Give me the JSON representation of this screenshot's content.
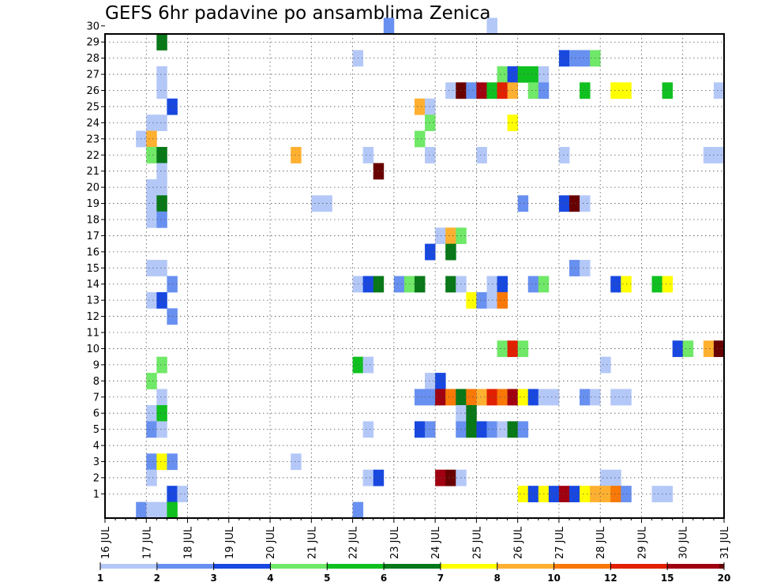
{
  "chart_data": {
    "type": "heatmap",
    "title": "GEFS 6hr padavine po ansamblima Zenica",
    "xlabel": "",
    "ylabel": "",
    "x_ticks": [
      "16 JUL",
      "17 JUL",
      "18 JUL",
      "19 JUL",
      "20 JUL",
      "21 JUL",
      "22 JUL",
      "23 JUL",
      "24 JUL",
      "25 JUL",
      "26 JUL",
      "27 JUL",
      "28 JUL",
      "29 JUL",
      "30 JUL",
      "31 JUL"
    ],
    "y_ticks": [
      "1",
      "2",
      "3",
      "4",
      "5",
      "6",
      "7",
      "8",
      "9",
      "10",
      "11",
      "12",
      "13",
      "14",
      "15",
      "16",
      "17",
      "18",
      "19",
      "20",
      "21",
      "22",
      "23",
      "24",
      "25",
      "26",
      "27",
      "28",
      "29",
      "30"
    ],
    "xlim": [
      "16 JUL 00Z",
      "31 JUL 00Z"
    ],
    "x_step": "6hr",
    "ylim": [
      0,
      30
    ],
    "grid": true,
    "colorbar": {
      "labels": [
        "1",
        "2",
        "3",
        "4",
        "5",
        "6",
        "7",
        "8",
        "10",
        "12",
        "15",
        "20"
      ],
      "colors": [
        "#b4c8f8",
        "#6890f0",
        "#1848e0",
        "#70e868",
        "#10c020",
        "#087818",
        "#ffff00",
        "#ffb030",
        "#f87808",
        "#e02000",
        "#a00010",
        "#680000"
      ]
    },
    "cells": [
      {
        "member": 30,
        "time": "22 JUL 18Z",
        "level": 2
      },
      {
        "member": 30,
        "time": "25 JUL 06Z",
        "level": 1
      },
      {
        "member": 29,
        "time": "17 JUL 06Z",
        "level": 6
      },
      {
        "member": 28,
        "time": "22 JUL 00Z",
        "level": 1
      },
      {
        "member": 28,
        "time": "27 JUL 00Z",
        "level": 3
      },
      {
        "member": 28,
        "time": "27 JUL 06Z",
        "level": 2
      },
      {
        "member": 28,
        "time": "27 JUL 12Z",
        "level": 2
      },
      {
        "member": 28,
        "time": "27 JUL 18Z",
        "level": 4
      },
      {
        "member": 27,
        "time": "17 JUL 06Z",
        "level": 1
      },
      {
        "member": 27,
        "time": "25 JUL 12Z",
        "level": 4
      },
      {
        "member": 27,
        "time": "25 JUL 18Z",
        "level": 3
      },
      {
        "member": 27,
        "time": "26 JUL 00Z",
        "level": 5
      },
      {
        "member": 27,
        "time": "26 JUL 06Z",
        "level": 5
      },
      {
        "member": 27,
        "time": "26 JUL 12Z",
        "level": 1
      },
      {
        "member": 26,
        "time": "17 JUL 06Z",
        "level": 1
      },
      {
        "member": 26,
        "time": "24 JUL 06Z",
        "level": 1
      },
      {
        "member": 26,
        "time": "24 JUL 12Z",
        "level": 12
      },
      {
        "member": 26,
        "time": "24 JUL 18Z",
        "level": 2
      },
      {
        "member": 26,
        "time": "25 JUL 00Z",
        "level": 11
      },
      {
        "member": 26,
        "time": "25 JUL 06Z",
        "level": 5
      },
      {
        "member": 26,
        "time": "25 JUL 12Z",
        "level": 10
      },
      {
        "member": 26,
        "time": "25 JUL 18Z",
        "level": 8
      },
      {
        "member": 26,
        "time": "26 JUL 06Z",
        "level": 4
      },
      {
        "member": 26,
        "time": "26 JUL 12Z",
        "level": 2
      },
      {
        "member": 26,
        "time": "27 JUL 12Z",
        "level": 5
      },
      {
        "member": 26,
        "time": "28 JUL 06Z",
        "level": 7
      },
      {
        "member": 26,
        "time": "28 JUL 12Z",
        "level": 7
      },
      {
        "member": 26,
        "time": "29 JUL 12Z",
        "level": 5
      },
      {
        "member": 26,
        "time": "30 JUL 18Z",
        "level": 1
      },
      {
        "member": 25,
        "time": "17 JUL 12Z",
        "level": 3
      },
      {
        "member": 25,
        "time": "23 JUL 12Z",
        "level": 8
      },
      {
        "member": 25,
        "time": "23 JUL 18Z",
        "level": 1
      },
      {
        "member": 24,
        "time": "17 JUL 00Z",
        "level": 1
      },
      {
        "member": 24,
        "time": "17 JUL 06Z",
        "level": 1
      },
      {
        "member": 24,
        "time": "23 JUL 18Z",
        "level": 4
      },
      {
        "member": 24,
        "time": "25 JUL 18Z",
        "level": 7
      },
      {
        "member": 23,
        "time": "16 JUL 18Z",
        "level": 1
      },
      {
        "member": 23,
        "time": "17 JUL 00Z",
        "level": 8
      },
      {
        "member": 23,
        "time": "23 JUL 12Z",
        "level": 4
      },
      {
        "member": 22,
        "time": "17 JUL 00Z",
        "level": 4
      },
      {
        "member": 22,
        "time": "17 JUL 06Z",
        "level": 6
      },
      {
        "member": 22,
        "time": "20 JUL 12Z",
        "level": 8
      },
      {
        "member": 22,
        "time": "22 JUL 06Z",
        "level": 1
      },
      {
        "member": 22,
        "time": "23 JUL 18Z",
        "level": 1
      },
      {
        "member": 22,
        "time": "25 JUL 00Z",
        "level": 1
      },
      {
        "member": 22,
        "time": "27 JUL 00Z",
        "level": 1
      },
      {
        "member": 22,
        "time": "30 JUL 12Z",
        "level": 1
      },
      {
        "member": 22,
        "time": "30 JUL 18Z",
        "level": 1
      },
      {
        "member": 21,
        "time": "17 JUL 06Z",
        "level": 1
      },
      {
        "member": 21,
        "time": "22 JUL 12Z",
        "level": 12
      },
      {
        "member": 20,
        "time": "17 JUL 00Z",
        "level": 1
      },
      {
        "member": 20,
        "time": "17 JUL 06Z",
        "level": 1
      },
      {
        "member": 19,
        "time": "17 JUL 00Z",
        "level": 1
      },
      {
        "member": 19,
        "time": "17 JUL 06Z",
        "level": 6
      },
      {
        "member": 19,
        "time": "21 JUL 00Z",
        "level": 1
      },
      {
        "member": 19,
        "time": "21 JUL 06Z",
        "level": 1
      },
      {
        "member": 19,
        "time": "26 JUL 00Z",
        "level": 2
      },
      {
        "member": 19,
        "time": "27 JUL 00Z",
        "level": 3
      },
      {
        "member": 19,
        "time": "27 JUL 06Z",
        "level": 12
      },
      {
        "member": 19,
        "time": "27 JUL 12Z",
        "level": 1
      },
      {
        "member": 18,
        "time": "17 JUL 00Z",
        "level": 1
      },
      {
        "member": 18,
        "time": "17 JUL 06Z",
        "level": 2
      },
      {
        "member": 17,
        "time": "24 JUL 00Z",
        "level": 1
      },
      {
        "member": 17,
        "time": "24 JUL 06Z",
        "level": 8
      },
      {
        "member": 17,
        "time": "24 JUL 12Z",
        "level": 4
      },
      {
        "member": 16,
        "time": "23 JUL 18Z",
        "level": 3
      },
      {
        "member": 16,
        "time": "24 JUL 06Z",
        "level": 6
      },
      {
        "member": 15,
        "time": "17 JUL 00Z",
        "level": 1
      },
      {
        "member": 15,
        "time": "17 JUL 06Z",
        "level": 1
      },
      {
        "member": 15,
        "time": "27 JUL 06Z",
        "level": 2
      },
      {
        "member": 15,
        "time": "27 JUL 12Z",
        "level": 1
      },
      {
        "member": 14,
        "time": "17 JUL 12Z",
        "level": 2
      },
      {
        "member": 14,
        "time": "22 JUL 00Z",
        "level": 1
      },
      {
        "member": 14,
        "time": "22 JUL 06Z",
        "level": 3
      },
      {
        "member": 14,
        "time": "22 JUL 12Z",
        "level": 6
      },
      {
        "member": 14,
        "time": "23 JUL 00Z",
        "level": 2
      },
      {
        "member": 14,
        "time": "23 JUL 06Z",
        "level": 4
      },
      {
        "member": 14,
        "time": "23 JUL 12Z",
        "level": 6
      },
      {
        "member": 14,
        "time": "24 JUL 06Z",
        "level": 6
      },
      {
        "member": 14,
        "time": "24 JUL 12Z",
        "level": 1
      },
      {
        "member": 14,
        "time": "25 JUL 06Z",
        "level": 1
      },
      {
        "member": 14,
        "time": "25 JUL 12Z",
        "level": 3
      },
      {
        "member": 14,
        "time": "26 JUL 06Z",
        "level": 2
      },
      {
        "member": 14,
        "time": "26 JUL 12Z",
        "level": 4
      },
      {
        "member": 14,
        "time": "28 JUL 06Z",
        "level": 3
      },
      {
        "member": 14,
        "time": "28 JUL 12Z",
        "level": 7
      },
      {
        "member": 14,
        "time": "29 JUL 06Z",
        "level": 5
      },
      {
        "member": 14,
        "time": "29 JUL 12Z",
        "level": 7
      },
      {
        "member": 13,
        "time": "17 JUL 00Z",
        "level": 1
      },
      {
        "member": 13,
        "time": "17 JUL 06Z",
        "level": 3
      },
      {
        "member": 13,
        "time": "24 JUL 18Z",
        "level": 7
      },
      {
        "member": 13,
        "time": "25 JUL 00Z",
        "level": 2
      },
      {
        "member": 13,
        "time": "25 JUL 06Z",
        "level": 1
      },
      {
        "member": 13,
        "time": "25 JUL 12Z",
        "level": 9
      },
      {
        "member": 12,
        "time": "17 JUL 12Z",
        "level": 2
      },
      {
        "member": 10,
        "time": "25 JUL 12Z",
        "level": 4
      },
      {
        "member": 10,
        "time": "25 JUL 18Z",
        "level": 10
      },
      {
        "member": 10,
        "time": "26 JUL 00Z",
        "level": 4
      },
      {
        "member": 10,
        "time": "29 JUL 18Z",
        "level": 3
      },
      {
        "member": 10,
        "time": "30 JUL 00Z",
        "level": 4
      },
      {
        "member": 10,
        "time": "30 JUL 12Z",
        "level": 8
      },
      {
        "member": 10,
        "time": "30 JUL 18Z",
        "level": 12
      },
      {
        "member": 9,
        "time": "17 JUL 06Z",
        "level": 4
      },
      {
        "member": 9,
        "time": "22 JUL 00Z",
        "level": 5
      },
      {
        "member": 9,
        "time": "22 JUL 06Z",
        "level": 1
      },
      {
        "member": 9,
        "time": "28 JUL 00Z",
        "level": 1
      },
      {
        "member": 8,
        "time": "17 JUL 00Z",
        "level": 4
      },
      {
        "member": 8,
        "time": "23 JUL 18Z",
        "level": 1
      },
      {
        "member": 8,
        "time": "24 JUL 00Z",
        "level": 3
      },
      {
        "member": 7,
        "time": "17 JUL 06Z",
        "level": 1
      },
      {
        "member": 7,
        "time": "23 JUL 12Z",
        "level": 2
      },
      {
        "member": 7,
        "time": "23 JUL 18Z",
        "level": 2
      },
      {
        "member": 7,
        "time": "24 JUL 00Z",
        "level": 11
      },
      {
        "member": 7,
        "time": "24 JUL 06Z",
        "level": 9
      },
      {
        "member": 7,
        "time": "24 JUL 12Z",
        "level": 6
      },
      {
        "member": 7,
        "time": "24 JUL 18Z",
        "level": 9
      },
      {
        "member": 7,
        "time": "25 JUL 00Z",
        "level": 8
      },
      {
        "member": 7,
        "time": "25 JUL 06Z",
        "level": 10
      },
      {
        "member": 7,
        "time": "25 JUL 12Z",
        "level": 9
      },
      {
        "member": 7,
        "time": "25 JUL 18Z",
        "level": 11
      },
      {
        "member": 7,
        "time": "26 JUL 00Z",
        "level": 7
      },
      {
        "member": 7,
        "time": "26 JUL 06Z",
        "level": 3
      },
      {
        "member": 7,
        "time": "26 JUL 12Z",
        "level": 1
      },
      {
        "member": 7,
        "time": "26 JUL 18Z",
        "level": 1
      },
      {
        "member": 7,
        "time": "27 JUL 12Z",
        "level": 2
      },
      {
        "member": 7,
        "time": "27 JUL 18Z",
        "level": 1
      },
      {
        "member": 7,
        "time": "28 JUL 06Z",
        "level": 1
      },
      {
        "member": 7,
        "time": "28 JUL 12Z",
        "level": 1
      },
      {
        "member": 6,
        "time": "17 JUL 00Z",
        "level": 1
      },
      {
        "member": 6,
        "time": "17 JUL 06Z",
        "level": 5
      },
      {
        "member": 6,
        "time": "24 JUL 12Z",
        "level": 1
      },
      {
        "member": 6,
        "time": "24 JUL 18Z",
        "level": 6
      },
      {
        "member": 5,
        "time": "17 JUL 00Z",
        "level": 2
      },
      {
        "member": 5,
        "time": "17 JUL 06Z",
        "level": 1
      },
      {
        "member": 5,
        "time": "22 JUL 06Z",
        "level": 1
      },
      {
        "member": 5,
        "time": "23 JUL 12Z",
        "level": 3
      },
      {
        "member": 5,
        "time": "23 JUL 18Z",
        "level": 2
      },
      {
        "member": 5,
        "time": "24 JUL 12Z",
        "level": 2
      },
      {
        "member": 5,
        "time": "24 JUL 18Z",
        "level": 6
      },
      {
        "member": 5,
        "time": "25 JUL 00Z",
        "level": 3
      },
      {
        "member": 5,
        "time": "25 JUL 06Z",
        "level": 2
      },
      {
        "member": 5,
        "time": "25 JUL 12Z",
        "level": 1
      },
      {
        "member": 5,
        "time": "25 JUL 18Z",
        "level": 6
      },
      {
        "member": 5,
        "time": "26 JUL 00Z",
        "level": 2
      },
      {
        "member": 3,
        "time": "17 JUL 00Z",
        "level": 2
      },
      {
        "member": 3,
        "time": "17 JUL 06Z",
        "level": 7
      },
      {
        "member": 3,
        "time": "17 JUL 12Z",
        "level": 2
      },
      {
        "member": 3,
        "time": "20 JUL 12Z",
        "level": 1
      },
      {
        "member": 2,
        "time": "17 JUL 00Z",
        "level": 1
      },
      {
        "member": 2,
        "time": "22 JUL 06Z",
        "level": 1
      },
      {
        "member": 2,
        "time": "22 JUL 12Z",
        "level": 3
      },
      {
        "member": 2,
        "time": "24 JUL 00Z",
        "level": 11
      },
      {
        "member": 2,
        "time": "24 JUL 06Z",
        "level": 12
      },
      {
        "member": 2,
        "time": "24 JUL 12Z",
        "level": 1
      },
      {
        "member": 2,
        "time": "28 JUL 00Z",
        "level": 1
      },
      {
        "member": 2,
        "time": "28 JUL 06Z",
        "level": 1
      },
      {
        "member": 1,
        "time": "17 JUL 12Z",
        "level": 3
      },
      {
        "member": 1,
        "time": "17 JUL 18Z",
        "level": 1
      },
      {
        "member": 1,
        "time": "26 JUL 00Z",
        "level": 7
      },
      {
        "member": 1,
        "time": "26 JUL 06Z",
        "level": 3
      },
      {
        "member": 1,
        "time": "26 JUL 12Z",
        "level": 7
      },
      {
        "member": 1,
        "time": "26 JUL 18Z",
        "level": 3
      },
      {
        "member": 1,
        "time": "27 JUL 00Z",
        "level": 11
      },
      {
        "member": 1,
        "time": "27 JUL 06Z",
        "level": 3
      },
      {
        "member": 1,
        "time": "27 JUL 12Z",
        "level": 7
      },
      {
        "member": 1,
        "time": "27 JUL 18Z",
        "level": 8
      },
      {
        "member": 1,
        "time": "28 JUL 00Z",
        "level": 8
      },
      {
        "member": 1,
        "time": "28 JUL 06Z",
        "level": 9
      },
      {
        "member": 1,
        "time": "28 JUL 12Z",
        "level": 2
      },
      {
        "member": 1,
        "time": "29 JUL 06Z",
        "level": 1
      },
      {
        "member": 1,
        "time": "29 JUL 12Z",
        "level": 1
      },
      {
        "member": 0,
        "time": "16 JUL 18Z",
        "level": 2
      },
      {
        "member": 0,
        "time": "17 JUL 00Z",
        "level": 1
      },
      {
        "member": 0,
        "time": "17 JUL 06Z",
        "level": 1
      },
      {
        "member": 0,
        "time": "17 JUL 12Z",
        "level": 5
      },
      {
        "member": 0,
        "time": "22 JUL 00Z",
        "level": 2
      }
    ]
  }
}
